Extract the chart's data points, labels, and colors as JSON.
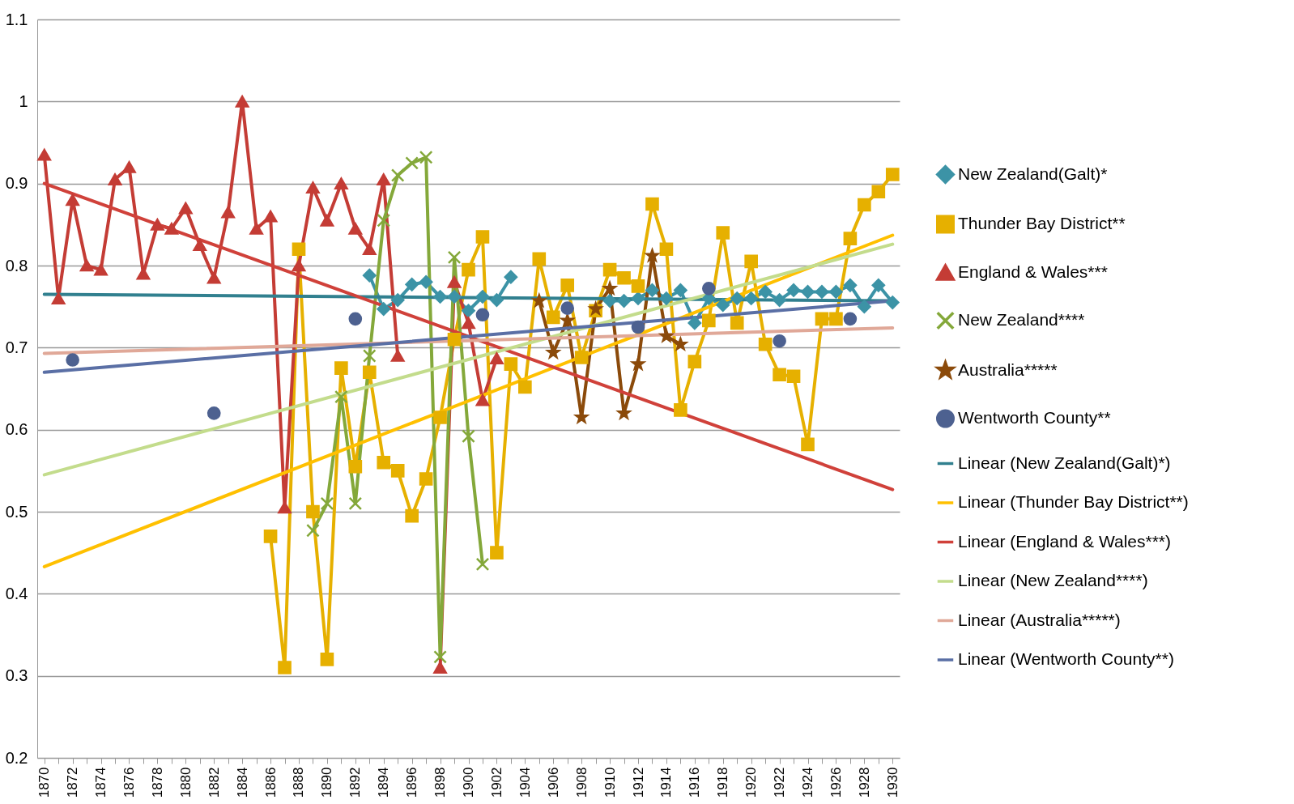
{
  "chart_data": {
    "type": "line",
    "xlim": [
      1869.5,
      1930.5
    ],
    "ylim": [
      0.2,
      1.1
    ],
    "xticks": [
      1870,
      {
        "value": 1871,
        "label": null
      },
      1872,
      {
        "value": 1873,
        "label": null
      },
      1874,
      {
        "value": 1875,
        "label": null
      },
      1876,
      {
        "value": 1877,
        "label": null
      },
      1878,
      {
        "value": 1879,
        "label": null
      },
      1880,
      {
        "value": 1881,
        "label": null
      },
      1882,
      {
        "value": 1883,
        "label": null
      },
      1884,
      {
        "value": 1885,
        "label": null
      },
      1886,
      {
        "value": 1887,
        "label": null
      },
      1888,
      {
        "value": 1889,
        "label": null
      },
      1890,
      {
        "value": 1891,
        "label": null
      },
      1892,
      {
        "value": 1893,
        "label": null
      },
      1894,
      {
        "value": 1895,
        "label": null
      },
      1896,
      {
        "value": 1897,
        "label": null
      },
      1898,
      {
        "value": 1899,
        "label": null
      },
      1900,
      {
        "value": 1901,
        "label": null
      },
      1902,
      {
        "value": 1903,
        "label": null
      },
      1904,
      {
        "value": 1905,
        "label": null
      },
      1906,
      {
        "value": 1907,
        "label": null
      },
      1908,
      {
        "value": 1909,
        "label": null
      },
      1910,
      {
        "value": 1911,
        "label": null
      },
      1912,
      {
        "value": 1913,
        "label": null
      },
      1914,
      {
        "value": 1915,
        "label": null
      },
      1916,
      {
        "value": 1917,
        "label": null
      },
      1918,
      {
        "value": 1919,
        "label": null
      },
      1920,
      {
        "value": 1921,
        "label": null
      },
      1922,
      {
        "value": 1923,
        "label": null
      },
      1924,
      {
        "value": 1925,
        "label": null
      },
      1926,
      {
        "value": 1927,
        "label": null
      },
      1928,
      {
        "value": 1929,
        "label": null
      },
      1930
    ],
    "yticks": [
      0.2,
      0.3,
      0.4,
      0.5,
      0.6,
      0.7,
      0.8,
      0.9,
      1,
      1.1
    ],
    "grid": "y",
    "legend": "right",
    "series": [
      {
        "name": "New Zealand(Galt)*",
        "color": "#3c93a6",
        "marker": "diamond",
        "x": [
          1893,
          1894,
          1895,
          1896,
          1897,
          1898,
          1899,
          1900,
          1901,
          1902,
          1903,
          1904,
          1905,
          1906,
          1907,
          1908,
          1909,
          1910,
          1911,
          1912,
          1913,
          1914,
          1915,
          1916,
          1917,
          1918,
          1919,
          1920,
          1921,
          1922,
          1923,
          1924,
          1925,
          1926,
          1927,
          1928,
          1929,
          1930
        ],
        "values": [
          0.788,
          0.747,
          0.758,
          0.777,
          0.78,
          0.762,
          0.762,
          0.745,
          0.762,
          0.758,
          0.786,
          null,
          null,
          null,
          null,
          null,
          null,
          0.757,
          0.757,
          0.76,
          0.77,
          0.76,
          0.77,
          0.73,
          0.76,
          0.752,
          0.76,
          0.76,
          0.768,
          0.758,
          0.77,
          0.768,
          0.768,
          0.768,
          0.776,
          0.75,
          0.776,
          0.755
        ]
      },
      {
        "name": "Thunder Bay District**",
        "color": "#e6b000",
        "marker": "square",
        "x": [
          1886,
          1887,
          1888,
          1889,
          1890,
          1891,
          1892,
          1893,
          1894,
          1895,
          1896,
          1897,
          1898,
          1899,
          1900,
          1901,
          1902,
          1903,
          1904,
          1905,
          1906,
          1907,
          1908,
          1909,
          1910,
          1911,
          1912,
          1913,
          1914,
          1915,
          1916,
          1917,
          1918,
          1919,
          1920,
          1921,
          1922,
          1923,
          1924,
          1925,
          1926,
          1927,
          1928,
          1929,
          1930
        ],
        "values": [
          0.47,
          0.31,
          0.82,
          0.5,
          0.32,
          0.675,
          0.555,
          0.67,
          0.56,
          0.55,
          0.495,
          0.54,
          0.615,
          0.71,
          0.795,
          0.835,
          0.45,
          0.68,
          0.652,
          0.808,
          0.737,
          0.776,
          0.688,
          0.745,
          0.795,
          0.785,
          0.775,
          0.875,
          0.82,
          0.624,
          0.683,
          0.733,
          0.84,
          0.73,
          0.805,
          0.704,
          0.667,
          0.665,
          0.582,
          0.735,
          0.735,
          0.833,
          0.874,
          0.89,
          0.911
        ]
      },
      {
        "name": "England & Wales***",
        "color": "#c43c35",
        "marker": "triangle",
        "x": [
          1870,
          1871,
          1872,
          1873,
          1874,
          1875,
          1876,
          1877,
          1878,
          1879,
          1880,
          1881,
          1882,
          1883,
          1884,
          1885,
          1886,
          1887,
          1888,
          1889,
          1890,
          1891,
          1892,
          1893,
          1894,
          1895,
          1896,
          1897,
          1898,
          1899,
          1900,
          1901,
          1902
        ],
        "values": [
          0.935,
          0.76,
          0.88,
          0.8,
          0.795,
          0.905,
          0.92,
          0.79,
          0.85,
          0.845,
          0.87,
          0.825,
          0.785,
          0.865,
          1.0,
          0.845,
          0.86,
          0.505,
          0.8,
          0.895,
          0.855,
          0.9,
          0.845,
          0.82,
          0.905,
          0.69,
          null,
          null,
          0.31,
          0.78,
          0.73,
          0.636,
          0.687
        ]
      },
      {
        "name": "New Zealand****",
        "color": "#84a83a",
        "marker": "cross",
        "x": [
          1889,
          1890,
          1891,
          1892,
          1893,
          1894,
          1895,
          1896,
          1897,
          1898,
          1899,
          1900,
          1901
        ],
        "values": [
          0.477,
          0.51,
          0.64,
          0.51,
          0.69,
          0.855,
          0.91,
          0.925,
          0.932,
          0.323,
          0.81,
          0.592,
          0.436
        ]
      },
      {
        "name": "Australia*****",
        "color": "#8b4a0a",
        "marker": "star",
        "x": [
          1905,
          1906,
          1907,
          1908,
          1909,
          1910,
          1911,
          1912,
          1913,
          1914,
          1915
        ],
        "values": [
          0.757,
          0.694,
          0.733,
          0.615,
          0.747,
          0.772,
          0.62,
          0.68,
          0.812,
          0.714,
          0.704
        ]
      },
      {
        "name": "Wentworth County**",
        "color": "#4d6190",
        "type": "scatter",
        "marker": "circle",
        "x": [
          1872,
          1882,
          1892,
          1901,
          1907,
          1912,
          1917,
          1922,
          1927
        ],
        "values": [
          0.685,
          0.62,
          0.735,
          0.74,
          0.748,
          0.725,
          0.772,
          0.708,
          0.735
        ]
      },
      {
        "name": "Linear (New Zealand(Galt)*)",
        "color": "#31808f",
        "type": "line",
        "marker": "none",
        "x": [
          1870,
          1930
        ],
        "values": [
          0.765,
          0.757
        ]
      },
      {
        "name": "Linear (Thunder Bay District**)",
        "color": "#ffc000",
        "type": "line",
        "marker": "none",
        "x": [
          1870,
          1930
        ],
        "values": [
          0.433,
          0.837
        ]
      },
      {
        "name": "Linear (England & Wales***)",
        "color": "#d0413a",
        "type": "line",
        "marker": "none",
        "x": [
          1870,
          1930
        ],
        "values": [
          0.9,
          0.527
        ]
      },
      {
        "name": "Linear (New Zealand****)",
        "color": "#c3dc8c",
        "type": "line",
        "marker": "none",
        "x": [
          1870,
          1930
        ],
        "values": [
          0.545,
          0.826
        ]
      },
      {
        "name": "Linear (Australia*****)",
        "color": "#e0a898",
        "type": "line",
        "marker": "none",
        "x": [
          1870,
          1930
        ],
        "values": [
          0.693,
          0.724
        ]
      },
      {
        "name": "Linear (Wentworth County**)",
        "color": "#5a6fa5",
        "type": "line",
        "marker": "none",
        "x": [
          1870,
          1930
        ],
        "values": [
          0.67,
          0.757
        ]
      }
    ]
  }
}
